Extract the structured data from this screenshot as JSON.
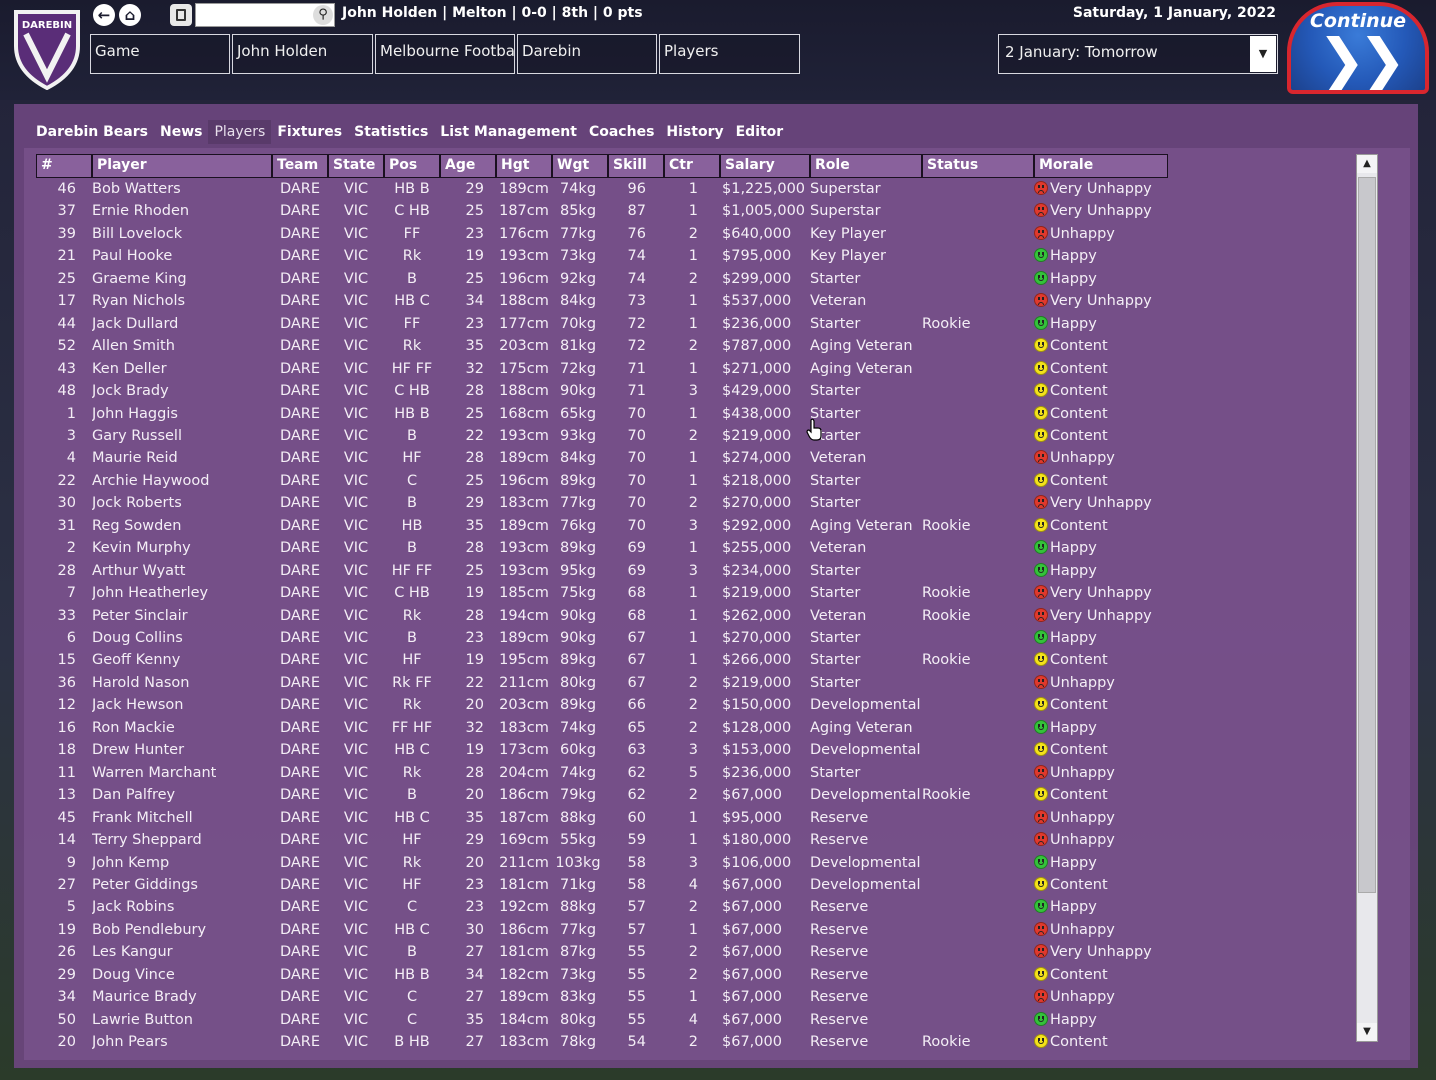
{
  "topbar": {
    "logo_text": "DAREBIN",
    "manager_info": "John Holden | Melton | 0-0 | 8th | 0 pts",
    "date": "Saturday, 1 January, 2022",
    "search_placeholder": "",
    "breadcrumbs": [
      "Game",
      "John Holden",
      "Melbourne Football",
      "Darebin",
      "Players"
    ],
    "continue_option": "2 January: Tomorrow",
    "continue_label": "Continue"
  },
  "menu": [
    "Darebin Bears",
    "News",
    "Players",
    "Fixtures",
    "Statistics",
    "List Management",
    "Coaches",
    "History",
    "Editor"
  ],
  "active_menu": "Players",
  "table": {
    "columns": [
      "#",
      "Player",
      "Team",
      "State",
      "Pos",
      "Age",
      "Hgt",
      "Wgt",
      "Skill",
      "Ctr",
      "Salary",
      "Role",
      "Status",
      "Morale"
    ],
    "rows": [
      [
        "46",
        "Bob Watters",
        "DARE",
        "VIC",
        "HB B",
        "29",
        "189cm",
        "74kg",
        "96",
        "1",
        "$1,225,000",
        "Superstar",
        "",
        "Very Unhappy"
      ],
      [
        "37",
        "Ernie Rhoden",
        "DARE",
        "VIC",
        "C HB",
        "25",
        "187cm",
        "85kg",
        "87",
        "1",
        "$1,005,000",
        "Superstar",
        "",
        "Very Unhappy"
      ],
      [
        "39",
        "Bill Lovelock",
        "DARE",
        "VIC",
        "FF",
        "23",
        "176cm",
        "77kg",
        "76",
        "2",
        "$640,000",
        "Key Player",
        "",
        "Unhappy"
      ],
      [
        "21",
        "Paul Hooke",
        "DARE",
        "VIC",
        "Rk",
        "19",
        "193cm",
        "73kg",
        "74",
        "1",
        "$795,000",
        "Key Player",
        "",
        "Happy"
      ],
      [
        "25",
        "Graeme King",
        "DARE",
        "VIC",
        "B",
        "25",
        "196cm",
        "92kg",
        "74",
        "2",
        "$299,000",
        "Starter",
        "",
        "Happy"
      ],
      [
        "17",
        "Ryan Nichols",
        "DARE",
        "VIC",
        "HB C",
        "34",
        "188cm",
        "84kg",
        "73",
        "1",
        "$537,000",
        "Veteran",
        "",
        "Very Unhappy"
      ],
      [
        "44",
        "Jack Dullard",
        "DARE",
        "VIC",
        "FF",
        "23",
        "177cm",
        "70kg",
        "72",
        "1",
        "$236,000",
        "Starter",
        "Rookie",
        "Happy"
      ],
      [
        "52",
        "Allen Smith",
        "DARE",
        "VIC",
        "Rk",
        "35",
        "203cm",
        "81kg",
        "72",
        "2",
        "$787,000",
        "Aging Veteran",
        "",
        "Content"
      ],
      [
        "43",
        "Ken Deller",
        "DARE",
        "VIC",
        "HF FF",
        "32",
        "175cm",
        "72kg",
        "71",
        "1",
        "$271,000",
        "Aging Veteran",
        "",
        "Content"
      ],
      [
        "48",
        "Jock Brady",
        "DARE",
        "VIC",
        "C HB",
        "28",
        "188cm",
        "90kg",
        "71",
        "3",
        "$429,000",
        "Starter",
        "",
        "Content"
      ],
      [
        "1",
        "John Haggis",
        "DARE",
        "VIC",
        "HB B",
        "25",
        "168cm",
        "65kg",
        "70",
        "1",
        "$438,000",
        "Starter",
        "",
        "Content"
      ],
      [
        "3",
        "Gary Russell",
        "DARE",
        "VIC",
        "B",
        "22",
        "193cm",
        "93kg",
        "70",
        "2",
        "$219,000",
        "Starter",
        "",
        "Content"
      ],
      [
        "4",
        "Maurie Reid",
        "DARE",
        "VIC",
        "HF",
        "28",
        "189cm",
        "84kg",
        "70",
        "1",
        "$274,000",
        "Veteran",
        "",
        "Unhappy"
      ],
      [
        "22",
        "Archie Haywood",
        "DARE",
        "VIC",
        "C",
        "25",
        "196cm",
        "89kg",
        "70",
        "1",
        "$218,000",
        "Starter",
        "",
        "Content"
      ],
      [
        "30",
        "Jock Roberts",
        "DARE",
        "VIC",
        "B",
        "29",
        "183cm",
        "77kg",
        "70",
        "2",
        "$270,000",
        "Starter",
        "",
        "Very Unhappy"
      ],
      [
        "31",
        "Reg Sowden",
        "DARE",
        "VIC",
        "HB",
        "35",
        "189cm",
        "76kg",
        "70",
        "3",
        "$292,000",
        "Aging Veteran",
        "Rookie",
        "Content"
      ],
      [
        "2",
        "Kevin Murphy",
        "DARE",
        "VIC",
        "B",
        "28",
        "193cm",
        "89kg",
        "69",
        "1",
        "$255,000",
        "Veteran",
        "",
        "Happy"
      ],
      [
        "28",
        "Arthur Wyatt",
        "DARE",
        "VIC",
        "HF FF",
        "25",
        "193cm",
        "95kg",
        "69",
        "3",
        "$234,000",
        "Starter",
        "",
        "Happy"
      ],
      [
        "7",
        "John Heatherley",
        "DARE",
        "VIC",
        "C HB",
        "19",
        "185cm",
        "75kg",
        "68",
        "1",
        "$219,000",
        "Starter",
        "Rookie",
        "Very Unhappy"
      ],
      [
        "33",
        "Peter Sinclair",
        "DARE",
        "VIC",
        "Rk",
        "28",
        "194cm",
        "90kg",
        "68",
        "1",
        "$262,000",
        "Veteran",
        "Rookie",
        "Very Unhappy"
      ],
      [
        "6",
        "Doug Collins",
        "DARE",
        "VIC",
        "B",
        "23",
        "189cm",
        "90kg",
        "67",
        "1",
        "$270,000",
        "Starter",
        "",
        "Happy"
      ],
      [
        "15",
        "Geoff Kenny",
        "DARE",
        "VIC",
        "HF",
        "19",
        "195cm",
        "89kg",
        "67",
        "1",
        "$266,000",
        "Starter",
        "Rookie",
        "Content"
      ],
      [
        "36",
        "Harold Nason",
        "DARE",
        "VIC",
        "Rk FF",
        "22",
        "211cm",
        "80kg",
        "67",
        "2",
        "$219,000",
        "Starter",
        "",
        "Unhappy"
      ],
      [
        "12",
        "Jack Hewson",
        "DARE",
        "VIC",
        "Rk",
        "20",
        "203cm",
        "89kg",
        "66",
        "2",
        "$150,000",
        "Developmental",
        "",
        "Content"
      ],
      [
        "16",
        "Ron Mackie",
        "DARE",
        "VIC",
        "FF HF",
        "32",
        "183cm",
        "74kg",
        "65",
        "2",
        "$128,000",
        "Aging Veteran",
        "",
        "Happy"
      ],
      [
        "18",
        "Drew Hunter",
        "DARE",
        "VIC",
        "HB C",
        "19",
        "173cm",
        "60kg",
        "63",
        "3",
        "$153,000",
        "Developmental",
        "",
        "Content"
      ],
      [
        "11",
        "Warren Marchant",
        "DARE",
        "VIC",
        "Rk",
        "28",
        "204cm",
        "74kg",
        "62",
        "5",
        "$236,000",
        "Starter",
        "",
        "Unhappy"
      ],
      [
        "13",
        "Dan Palfrey",
        "DARE",
        "VIC",
        "B",
        "20",
        "186cm",
        "79kg",
        "62",
        "2",
        "$67,000",
        "Developmental",
        "Rookie",
        "Content"
      ],
      [
        "45",
        "Frank Mitchell",
        "DARE",
        "VIC",
        "HB C",
        "35",
        "187cm",
        "88kg",
        "60",
        "1",
        "$95,000",
        "Reserve",
        "",
        "Unhappy"
      ],
      [
        "14",
        "Terry Sheppard",
        "DARE",
        "VIC",
        "HF",
        "29",
        "169cm",
        "55kg",
        "59",
        "1",
        "$180,000",
        "Reserve",
        "",
        "Unhappy"
      ],
      [
        "9",
        "John Kemp",
        "DARE",
        "VIC",
        "Rk",
        "20",
        "211cm",
        "103kg",
        "58",
        "3",
        "$106,000",
        "Developmental",
        "",
        "Happy"
      ],
      [
        "27",
        "Peter Giddings",
        "DARE",
        "VIC",
        "HF",
        "23",
        "181cm",
        "71kg",
        "58",
        "4",
        "$67,000",
        "Developmental",
        "",
        "Content"
      ],
      [
        "5",
        "Jack Robins",
        "DARE",
        "VIC",
        "C",
        "23",
        "192cm",
        "88kg",
        "57",
        "2",
        "$67,000",
        "Reserve",
        "",
        "Happy"
      ],
      [
        "19",
        "Bob Pendlebury",
        "DARE",
        "VIC",
        "HB C",
        "30",
        "186cm",
        "77kg",
        "57",
        "1",
        "$67,000",
        "Reserve",
        "",
        "Unhappy"
      ],
      [
        "26",
        "Les Kangur",
        "DARE",
        "VIC",
        "B",
        "27",
        "181cm",
        "87kg",
        "55",
        "2",
        "$67,000",
        "Reserve",
        "",
        "Very Unhappy"
      ],
      [
        "29",
        "Doug Vince",
        "DARE",
        "VIC",
        "HB B",
        "34",
        "182cm",
        "73kg",
        "55",
        "2",
        "$67,000",
        "Reserve",
        "",
        "Content"
      ],
      [
        "34",
        "Maurice Brady",
        "DARE",
        "VIC",
        "C",
        "27",
        "189cm",
        "83kg",
        "55",
        "1",
        "$67,000",
        "Reserve",
        "",
        "Unhappy"
      ],
      [
        "50",
        "Lawrie Button",
        "DARE",
        "VIC",
        "C",
        "35",
        "184cm",
        "80kg",
        "55",
        "4",
        "$67,000",
        "Reserve",
        "",
        "Happy"
      ],
      [
        "20",
        "John Pears",
        "DARE",
        "VIC",
        "B HB",
        "27",
        "183cm",
        "78kg",
        "54",
        "2",
        "$67,000",
        "Reserve",
        "Rookie",
        "Content"
      ]
    ]
  },
  "morale_colors": {
    "Very Unhappy": "#e0392c",
    "Unhappy": "#e0392c",
    "Content": "#f4e21a",
    "Happy": "#34c23a"
  }
}
